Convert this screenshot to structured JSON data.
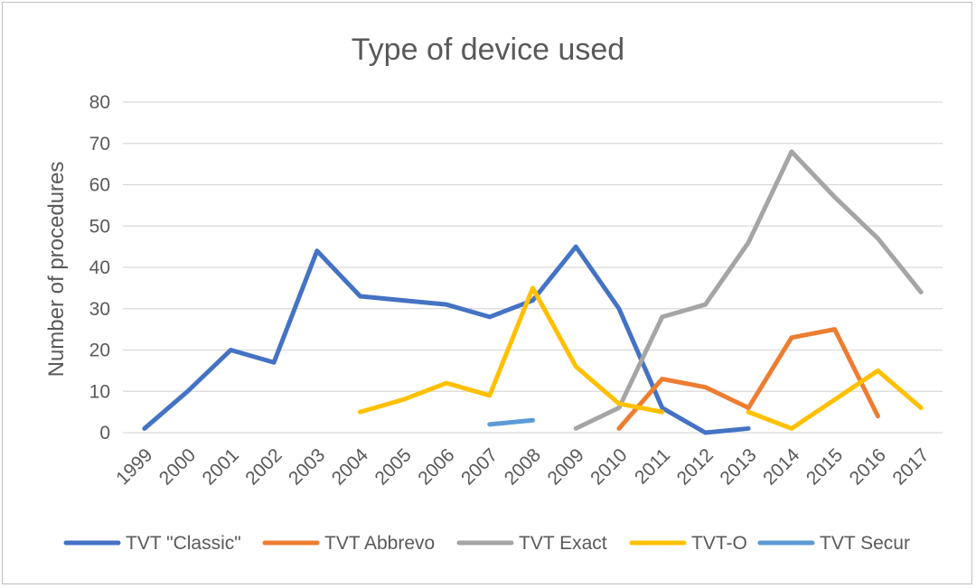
{
  "chart_data": {
    "type": "line",
    "title": "Type of device used",
    "xlabel": "",
    "ylabel": "Number of procedures",
    "ylim": [
      0,
      80
    ],
    "yticks": [
      0,
      10,
      20,
      30,
      40,
      50,
      60,
      70,
      80
    ],
    "grid": true,
    "legend_position": "bottom",
    "categories": [
      "1999",
      "2000",
      "2001",
      "2002",
      "2003",
      "2004",
      "2005",
      "2006",
      "2007",
      "2008",
      "2009",
      "2010",
      "2011",
      "2012",
      "2013",
      "2014",
      "2015",
      "2016",
      "2017"
    ],
    "series": [
      {
        "name": "TVT \"Classic\"",
        "color": "#4472C4",
        "values": [
          1,
          10,
          20,
          17,
          44,
          33,
          32,
          31,
          28,
          32,
          45,
          30,
          6,
          0,
          1,
          null,
          null,
          null,
          null
        ]
      },
      {
        "name": "TVT Abbrevo",
        "color": "#ED7D31",
        "values": [
          null,
          null,
          null,
          null,
          null,
          null,
          null,
          null,
          null,
          null,
          null,
          1,
          13,
          11,
          6,
          23,
          25,
          4,
          null
        ]
      },
      {
        "name": "TVT Exact",
        "color": "#A5A5A5",
        "values": [
          null,
          null,
          null,
          null,
          null,
          null,
          null,
          null,
          null,
          null,
          1,
          6,
          28,
          31,
          46,
          68,
          57,
          47,
          34
        ]
      },
      {
        "name": "TVT-O",
        "color": "#FFC000",
        "values": [
          null,
          null,
          null,
          null,
          null,
          5,
          8,
          12,
          9,
          35,
          16,
          7,
          5,
          null,
          5,
          1,
          8,
          15,
          6
        ]
      },
      {
        "name": "TVT Secur",
        "color": "#5B9BD5",
        "values": [
          null,
          null,
          null,
          null,
          null,
          null,
          null,
          null,
          2,
          3,
          null,
          null,
          null,
          null,
          null,
          null,
          null,
          null,
          null
        ]
      }
    ]
  }
}
